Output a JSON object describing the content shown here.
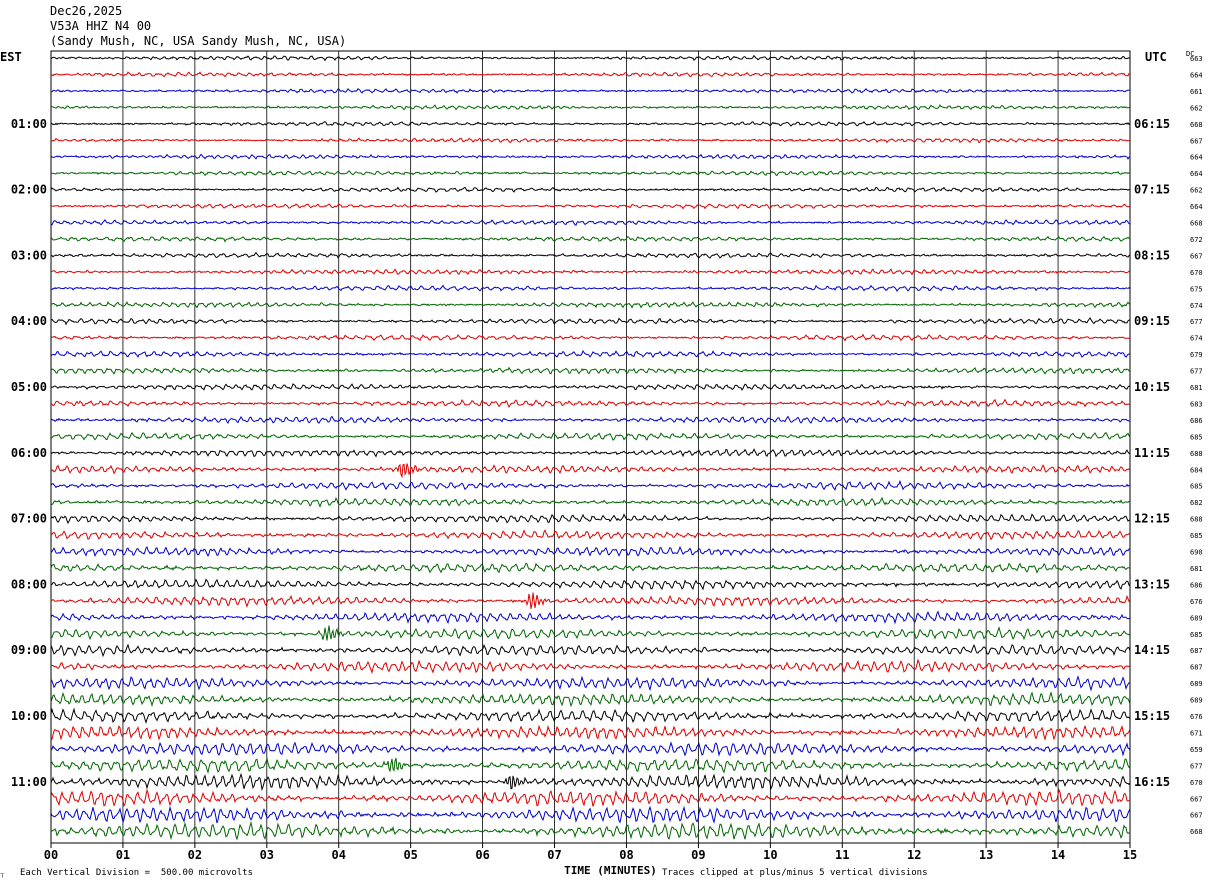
{
  "header": {
    "date": "Dec26,2025",
    "station": "V53A HHZ N4 00",
    "location": "(Sandy Mush, NC, USA Sandy Mush, NC, USA)"
  },
  "left_timezone": "EST",
  "right_timezone": "UTC",
  "dc_header": "DC",
  "footer": {
    "scale": "Each Vertical Division =  500.00 microvolts",
    "clip": "Traces clipped at plus/minus 5 vertical divisions"
  },
  "chart_data": {
    "type": "line",
    "title": "",
    "xlabel": "TIME (MINUTES)",
    "x_ticks": [
      "00",
      "01",
      "02",
      "03",
      "04",
      "05",
      "06",
      "07",
      "08",
      "09",
      "10",
      "11",
      "12",
      "13",
      "14",
      "15"
    ],
    "xlim": [
      0,
      15
    ],
    "trace_colors": [
      "#000000",
      "#dd0000",
      "#0000cc",
      "#006600"
    ],
    "left_hour_labels": [
      "01:00",
      "02:00",
      "03:00",
      "04:00",
      "05:00",
      "06:00",
      "07:00",
      "08:00",
      "09:00",
      "10:00",
      "11:00"
    ],
    "right_hour_labels": [
      "06:15",
      "07:15",
      "08:15",
      "09:15",
      "10:15",
      "11:15",
      "12:15",
      "13:15",
      "14:15",
      "15:15",
      "16:15"
    ],
    "dc_offsets": [
      "663",
      "664",
      "661",
      "662",
      "668",
      "667",
      "664",
      "664",
      "662",
      "664",
      "668",
      "672",
      "667",
      "670",
      "675",
      "674",
      "677",
      "674",
      "679",
      "677",
      "681",
      "683",
      "686",
      "685",
      "688",
      "684",
      "685",
      "682",
      "688",
      "685",
      "690",
      "681",
      "686",
      "676",
      "689",
      "685",
      "687",
      "687",
      "689",
      "689",
      "676",
      "671",
      "659",
      "677",
      "670",
      "667",
      "667",
      "668"
    ],
    "events": [
      {
        "trace": 25,
        "minute": 4.9
      },
      {
        "trace": 33,
        "minute": 6.7
      },
      {
        "trace": 35,
        "minute": 3.85
      },
      {
        "trace": 43,
        "minute": 4.75
      },
      {
        "trace": 44,
        "minute": 6.4
      }
    ]
  }
}
